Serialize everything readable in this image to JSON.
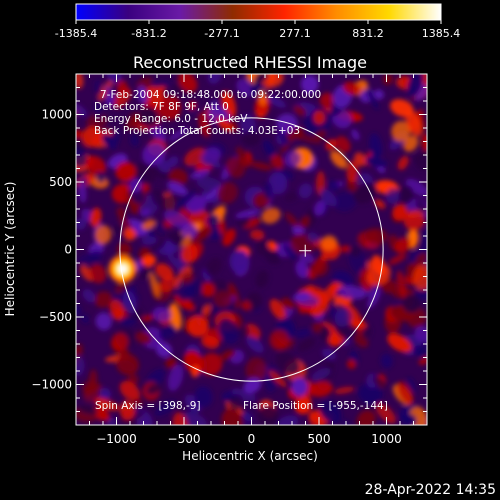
{
  "chart_data": {
    "type": "heatmap",
    "title": "Reconstructed RHESSI Image",
    "xlabel": "Heliocentric X (arcsec)",
    "ylabel": "Heliocentric Y (arcsec)",
    "xlim": [
      -1300,
      1300
    ],
    "ylim": [
      -1300,
      1300
    ],
    "xticks": [
      -1000,
      -500,
      0,
      500,
      1000
    ],
    "yticks": [
      -1000,
      -500,
      0,
      500,
      1000
    ],
    "colorbar": {
      "min": -1385.4,
      "max": 1385.4,
      "ticks": [
        "-1385.4",
        "-831.2",
        "-277.1",
        "277.1",
        "831.2",
        "1385.4"
      ],
      "colors": [
        "#0000ff",
        "#3a0080",
        "#6a1aa6",
        "#8f2b00",
        "#ff2400",
        "#ff8c00",
        "#ffd800",
        "#ffffff"
      ]
    },
    "annotations": [
      "7-Feb-2004 09:18:48.000 to 09:22:00.000",
      "Detectors: 7F 8F 9F, Att 0",
      "Energy Range: 6.0 - 12.0 keV",
      "Back Projection   Total counts: 4.03E+03",
      "Spin Axis = [398,-9]",
      "Flare Position = [-955,-144]"
    ],
    "spin_axis": [
      398,
      -9
    ],
    "flare_position": [
      -955,
      -144
    ],
    "solar_limb_radius": 975,
    "footer_time": "28-Apr-2022 14:35"
  }
}
